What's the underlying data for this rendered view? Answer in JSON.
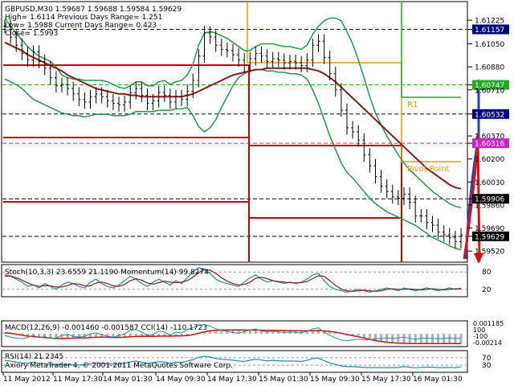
{
  "window": {
    "symbol_line": "GBPUSD,M30  1.59687 1.59688 1.59584 1.59629",
    "info_lines": [
      "High= 1.6114     Previous Days Range= 1.251",
      "Low= 1.5988     Current Days Range= 0.423",
      "Close= 1.5993"
    ],
    "copyright": "Axiory MetaTrader 4, © 2001-2011 MetaQuotes Software Corp."
  },
  "colors": {
    "candle": "#000000",
    "bollinger": "#1f9a48",
    "ma": "#8b1a1a",
    "levels": "#cc0000",
    "orange": "#e8a000",
    "green_guide": "#22aa22",
    "arrow_red": "#dd1111",
    "arrow_blue": "#2244cc"
  },
  "chart_data": [
    {
      "type": "line",
      "name": "main",
      "y_range": [
        1.5945,
        1.6135
      ],
      "y_ticks": [
        "1.61225",
        "1.61157",
        "1.61050",
        "1.60880",
        "1.60747",
        "1.60710",
        "1.60532",
        "1.60370",
        "1.60316",
        "1.60200",
        "1.60030",
        "1.59906",
        "1.59860",
        "1.59690",
        "1.59629",
        "1.59520"
      ],
      "highlighted_ticks": [
        {
          "label": "1.61157",
          "color": "#000080"
        },
        {
          "label": "1.60747",
          "color": "#22aa22"
        },
        {
          "label": "1.60532",
          "color": "#000080"
        },
        {
          "label": "1.60316",
          "color": "#cc22cc"
        },
        {
          "label": "1.59906",
          "color": "#000000"
        },
        {
          "label": "1.59629",
          "color": "#000000"
        }
      ],
      "x_labels": [
        "11 May 2012",
        "11 May 17:30",
        "14 May 01:30",
        "14 May 09:30",
        "14 May 17:30",
        "15 May 01:30",
        "15 May 09:30",
        "15 May 17:30",
        "16 May 01:30"
      ],
      "level_labels": [
        "R1",
        "Pivot Point"
      ],
      "close": [
        1.6118,
        1.611,
        1.6104,
        1.6098,
        1.6093,
        1.6099,
        1.6092,
        1.6087,
        1.608,
        1.6074,
        1.6075,
        1.6072,
        1.6068,
        1.6064,
        1.6062,
        1.6066,
        1.6068,
        1.6066,
        1.6063,
        1.6061,
        1.606,
        1.6062,
        1.6069,
        1.6072,
        1.6067,
        1.6061,
        1.6063,
        1.6069,
        1.6067,
        1.6062,
        1.6066,
        1.6064,
        1.607,
        1.6078,
        1.6096,
        1.6113,
        1.611,
        1.6104,
        1.6101,
        1.61,
        1.6097,
        1.6093,
        1.6089,
        1.6094,
        1.6098,
        1.6096,
        1.6092,
        1.6094,
        1.6093,
        1.6091,
        1.6092,
        1.6091,
        1.6089,
        1.6093,
        1.6104,
        1.6107,
        1.6095,
        1.6083,
        1.6071,
        1.6056,
        1.6043,
        1.604,
        1.6034,
        1.6023,
        1.6015,
        1.6007,
        1.6,
        1.5996,
        1.5992,
        1.5991,
        1.5994,
        1.5988,
        1.5978,
        1.5978,
        1.5973,
        1.5971,
        1.5966,
        1.5964,
        1.5962,
        1.5959,
        1.5964
      ],
      "upper_band": [
        1.6124,
        1.6118,
        1.6113,
        1.6108,
        1.6103,
        1.6099,
        1.6096,
        1.6094,
        1.6092,
        1.6088,
        1.6082,
        1.608,
        1.6079,
        1.6079,
        1.6078,
        1.6078,
        1.6078,
        1.6078,
        1.6077,
        1.6075,
        1.6073,
        1.6072,
        1.6074,
        1.6077,
        1.6077,
        1.6074,
        1.6074,
        1.6077,
        1.6078,
        1.6075,
        1.6077,
        1.6078,
        1.6082,
        1.609,
        1.6104,
        1.6113,
        1.6114,
        1.6113,
        1.6111,
        1.6109,
        1.6106,
        1.6103,
        1.61,
        1.61,
        1.6103,
        1.6105,
        1.6105,
        1.6105,
        1.6104,
        1.6103,
        1.6103,
        1.6102,
        1.6101,
        1.6104,
        1.6112,
        1.6118,
        1.6122,
        1.6124,
        1.6124,
        1.6122,
        1.6114,
        1.6105,
        1.6093,
        1.608,
        1.6066,
        1.6054,
        1.6045,
        1.6037,
        1.603,
        1.6023,
        1.6017,
        1.6012,
        1.6008,
        1.6004,
        1.6,
        1.5996,
        1.5993,
        1.599,
        1.5987,
        1.5985,
        1.5984
      ],
      "lower_band": [
        1.6079,
        1.6077,
        1.6075,
        1.6072,
        1.6068,
        1.6064,
        1.6062,
        1.606,
        1.6058,
        1.6056,
        1.6054,
        1.6053,
        1.6052,
        1.6052,
        1.6051,
        1.6052,
        1.6053,
        1.6053,
        1.6053,
        1.6052,
        1.6052,
        1.6052,
        1.6053,
        1.6055,
        1.6055,
        1.6055,
        1.6055,
        1.6056,
        1.6056,
        1.6056,
        1.6057,
        1.6057,
        1.6058,
        1.6052,
        1.6044,
        1.604,
        1.6043,
        1.6049,
        1.6058,
        1.6066,
        1.6074,
        1.608,
        1.6083,
        1.6085,
        1.6086,
        1.6086,
        1.6085,
        1.6085,
        1.6084,
        1.6084,
        1.6083,
        1.6083,
        1.6082,
        1.6079,
        1.6071,
        1.6061,
        1.6049,
        1.6037,
        1.6027,
        1.6017,
        1.601,
        1.6006,
        1.6001,
        1.5996,
        1.5991,
        1.5987,
        1.5984,
        1.5981,
        1.5979,
        1.5977,
        1.5975,
        1.5973,
        1.5971,
        1.5968,
        1.5965,
        1.5962,
        1.596,
        1.5958,
        1.5956,
        1.5954,
        1.5953
      ],
      "ma": [
        1.6106,
        1.6104,
        1.6102,
        1.61,
        1.6097,
        1.6095,
        1.6093,
        1.6091,
        1.6089,
        1.6087,
        1.6085,
        1.6082,
        1.608,
        1.6078,
        1.6076,
        1.6074,
        1.6072,
        1.6071,
        1.607,
        1.6069,
        1.6068,
        1.6068,
        1.6067,
        1.6067,
        1.6066,
        1.6066,
        1.6066,
        1.6066,
        1.6066,
        1.6066,
        1.6066,
        1.6066,
        1.6067,
        1.6068,
        1.607,
        1.6072,
        1.6074,
        1.6076,
        1.6078,
        1.608,
        1.6082,
        1.6083,
        1.6084,
        1.6085,
        1.6086,
        1.6086,
        1.6087,
        1.6087,
        1.6087,
        1.6087,
        1.6087,
        1.6087,
        1.6087,
        1.6087,
        1.6086,
        1.6085,
        1.6083,
        1.608,
        1.6077,
        1.6073,
        1.6069,
        1.6065,
        1.6061,
        1.6057,
        1.6053,
        1.6049,
        1.6045,
        1.6041,
        1.6037,
        1.6033,
        1.6029,
        1.6025,
        1.6021,
        1.6017,
        1.6013,
        1.601,
        1.6007,
        1.6004,
        1.6001,
        1.5999,
        1.5998
      ]
    },
    {
      "type": "line",
      "name": "stochastic",
      "header": "Stoch(10,3,3) 23.6559 21.1190  Momentum(14) 99.8274",
      "ticks": [
        "80",
        "20"
      ],
      "main": [
        70,
        65,
        55,
        45,
        30,
        35,
        25,
        40,
        30,
        20,
        35,
        45,
        40,
        30,
        25,
        45,
        55,
        40,
        30,
        25,
        35,
        50,
        65,
        55,
        40,
        30,
        45,
        55,
        45,
        35,
        50,
        40,
        60,
        80,
        95,
        90,
        75,
        55,
        45,
        40,
        35,
        30,
        45,
        60,
        70,
        55,
        45,
        50,
        45,
        40,
        45,
        40,
        45,
        55,
        70,
        75,
        50,
        30,
        20,
        15,
        10,
        15,
        20,
        15,
        10,
        15,
        20,
        25,
        20,
        15,
        25,
        20,
        15,
        20,
        25,
        20,
        15,
        20,
        25,
        20,
        24
      ],
      "signal": [
        65,
        66,
        60,
        52,
        42,
        35,
        30,
        33,
        32,
        28,
        28,
        33,
        40,
        38,
        32,
        32,
        42,
        45,
        40,
        32,
        30,
        37,
        50,
        57,
        52,
        42,
        38,
        43,
        48,
        45,
        43,
        45,
        50,
        62,
        78,
        88,
        86,
        75,
        60,
        48,
        40,
        35,
        37,
        45,
        58,
        62,
        57,
        50,
        47,
        45,
        43,
        42,
        43,
        47,
        57,
        67,
        65,
        50,
        33,
        21,
        15,
        13,
        15,
        17,
        15,
        13,
        15,
        20,
        22,
        20,
        20,
        21,
        20,
        18,
        20,
        22,
        20,
        18,
        20,
        22,
        21
      ]
    },
    {
      "type": "line",
      "name": "macd",
      "header": "MACD(12,26,9) -0.001460 -0.001587  CCI(14) -110.1723",
      "ticks": [
        "0.001185",
        "100",
        "-100",
        "-0.00214"
      ],
      "macd": [
        0.1,
        0.05,
        -0.05,
        -0.15,
        -0.25,
        -0.3,
        -0.35,
        -0.4,
        -0.45,
        -0.5,
        -0.5,
        -0.48,
        -0.46,
        -0.44,
        -0.43,
        -0.4,
        -0.37,
        -0.36,
        -0.37,
        -0.38,
        -0.38,
        -0.36,
        -0.32,
        -0.28,
        -0.26,
        -0.27,
        -0.27,
        -0.25,
        -0.24,
        -0.25,
        -0.23,
        -0.22,
        -0.18,
        -0.1,
        0.05,
        0.2,
        0.3,
        0.35,
        0.38,
        0.4,
        0.4,
        0.39,
        0.38,
        0.38,
        0.38,
        0.37,
        0.36,
        0.35,
        0.34,
        0.33,
        0.32,
        0.31,
        0.3,
        0.3,
        0.32,
        0.33,
        0.3,
        0.24,
        0.16,
        0.05,
        -0.08,
        -0.2,
        -0.32,
        -0.45,
        -0.58,
        -0.7,
        -0.8,
        -0.88,
        -0.94,
        -0.98,
        -1.0,
        -1.01,
        -1.02,
        -1.02,
        -1.02,
        -1.02,
        -1.02,
        -1.02,
        -1.02,
        -1.02,
        -1.02
      ],
      "cci": [
        -40,
        -80,
        -100,
        -120,
        -90,
        -40,
        -90,
        -70,
        -110,
        -100,
        -40,
        -20,
        -60,
        -80,
        -60,
        0,
        20,
        -20,
        -60,
        -80,
        -40,
        0,
        80,
        100,
        40,
        -40,
        -20,
        60,
        40,
        -40,
        40,
        20,
        100,
        150,
        200,
        220,
        180,
        120,
        80,
        60,
        30,
        10,
        50,
        90,
        110,
        70,
        40,
        60,
        40,
        30,
        40,
        30,
        20,
        60,
        120,
        140,
        40,
        -40,
        -100,
        -150,
        -170,
        -150,
        -130,
        -150,
        -140,
        -120,
        -110,
        -100,
        -110,
        -100,
        -80,
        -110,
        -130,
        -110,
        -100,
        -110,
        -120,
        -110,
        -100,
        -110,
        -110
      ]
    },
    {
      "type": "line",
      "name": "rsi",
      "header": "RSI(14) 21.2345",
      "ticks": [
        "70",
        "30"
      ],
      "values": [
        56,
        52,
        47,
        43,
        40,
        47,
        40,
        38,
        34,
        31,
        34,
        33,
        32,
        31,
        31,
        38,
        42,
        39,
        37,
        36,
        37,
        40,
        48,
        52,
        46,
        41,
        43,
        49,
        46,
        41,
        46,
        44,
        52,
        60,
        72,
        78,
        74,
        66,
        62,
        60,
        57,
        53,
        50,
        57,
        62,
        58,
        53,
        56,
        54,
        52,
        53,
        52,
        50,
        56,
        66,
        68,
        54,
        42,
        34,
        26,
        22,
        22,
        20,
        18,
        17,
        17,
        17,
        17,
        17,
        18,
        22,
        19,
        16,
        18,
        19,
        19,
        17,
        17,
        18,
        17,
        21
      ]
    }
  ]
}
